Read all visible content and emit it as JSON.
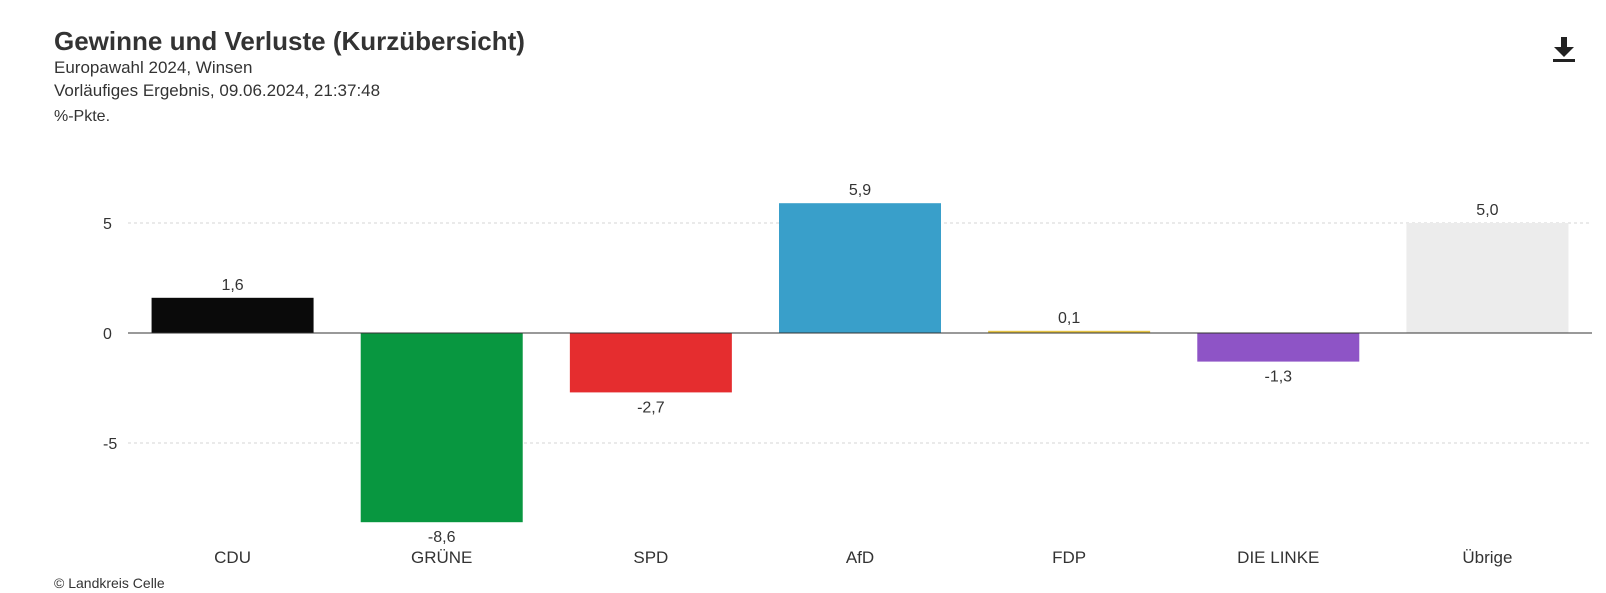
{
  "header": {
    "title": "Gewinne und Verluste (Kurzübersicht)",
    "subtitle1": "Europawahl 2024, Winsen",
    "subtitle2": "Vorläufiges Ergebnis, 09.06.2024, 21:37:48",
    "unit": "%-Pkte."
  },
  "toolbar": {
    "download_icon": "download-icon"
  },
  "footer": {
    "source": "© Landkreis Celle"
  },
  "chart_data": {
    "type": "bar",
    "title": "Gewinne und Verluste (Kurzübersicht)",
    "ylabel": "%-Pkte.",
    "ylim": [
      -8.6,
      5.9
    ],
    "yticks": [
      5,
      0,
      -5
    ],
    "ytick_labels": [
      "5",
      "0",
      "-5"
    ],
    "grid": true,
    "categories": [
      "CDU",
      "GRÜNE",
      "SPD",
      "AfD",
      "FDP",
      "DIE LINKE",
      "Übrige"
    ],
    "values": [
      1.6,
      -8.6,
      -2.7,
      5.9,
      0.1,
      -1.3,
      5.0
    ],
    "value_labels": [
      "1,6",
      "-8,6",
      "-2,7",
      "5,9",
      "0,1",
      "-1,3",
      "5,0"
    ],
    "colors": [
      "#0a0a0a",
      "#089740",
      "#e52d2f",
      "#399fca",
      "#e6c445",
      "#8e54c6",
      "#ececec"
    ]
  }
}
